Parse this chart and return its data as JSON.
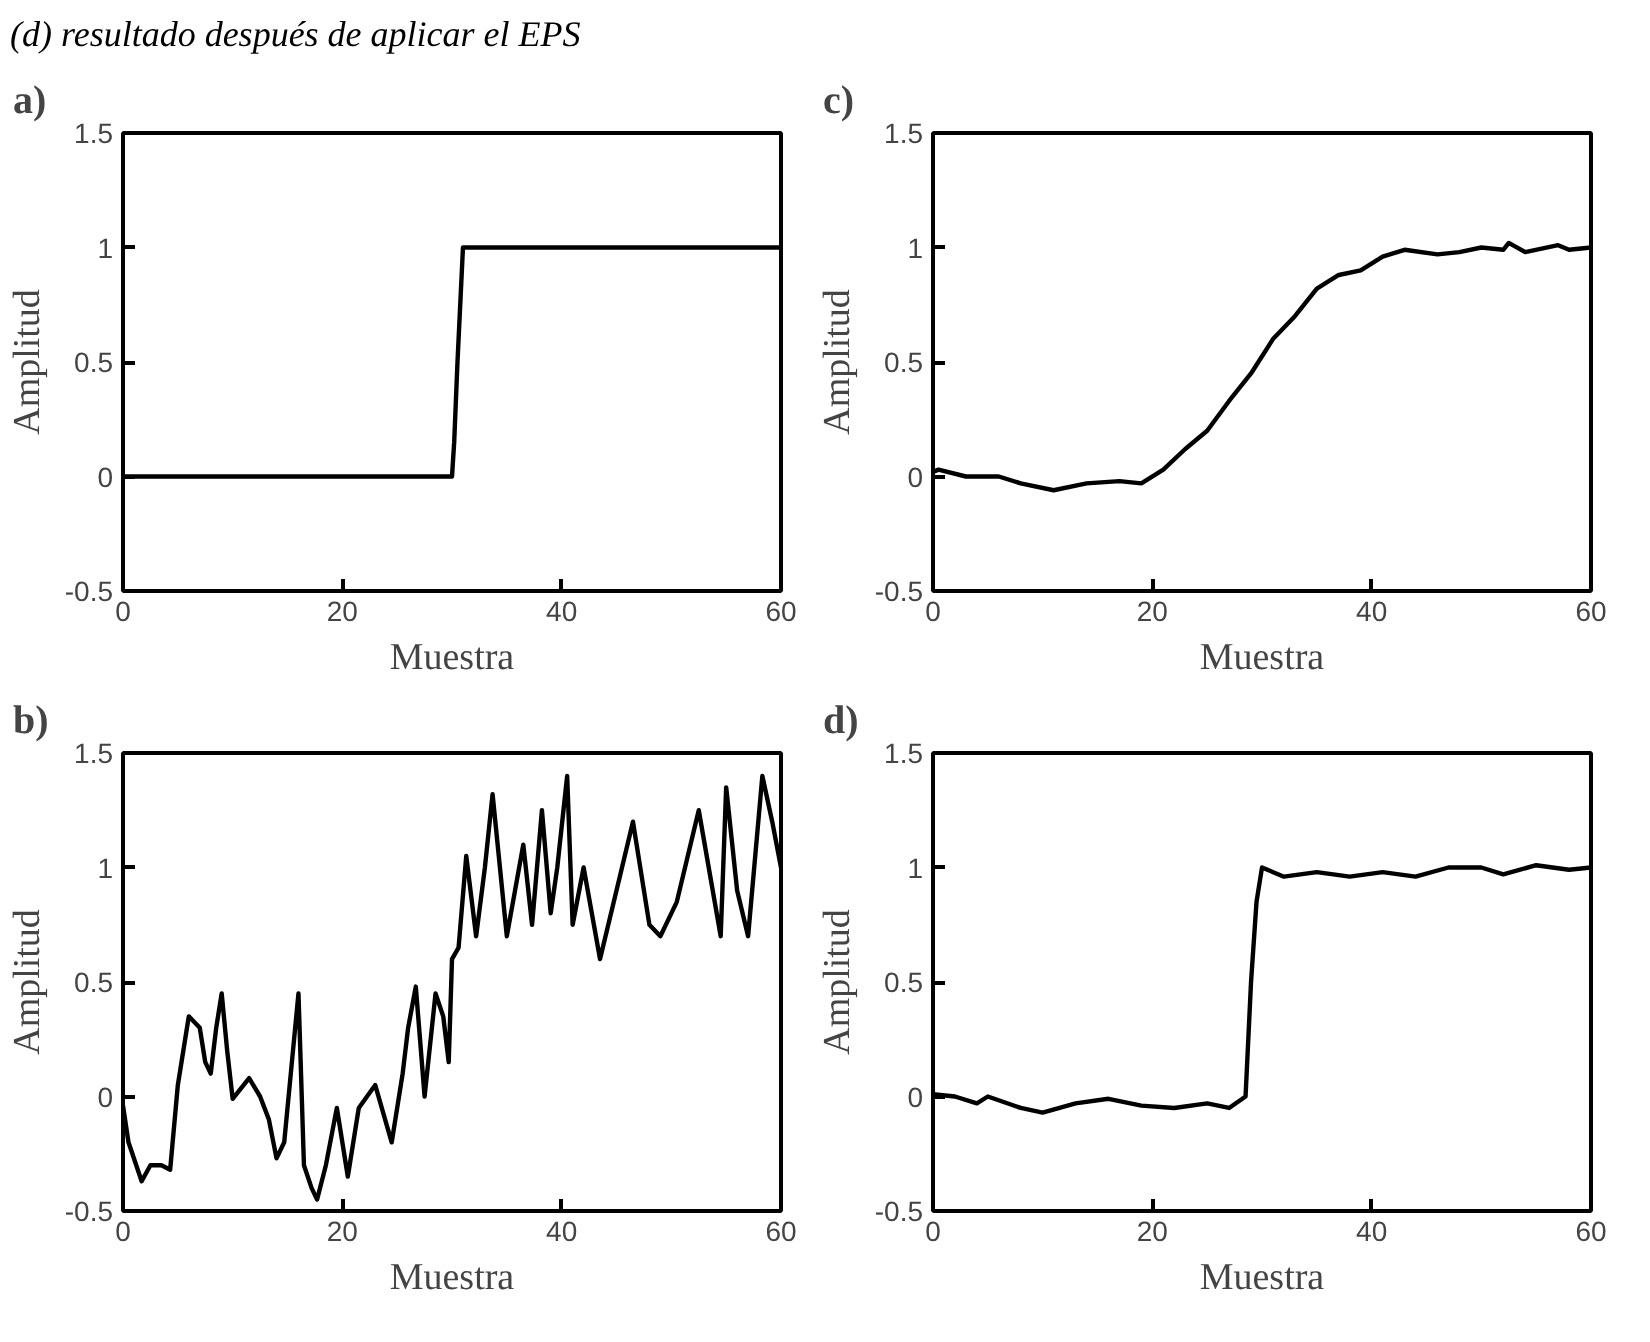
{
  "chart_data": [
    {
      "type": "line",
      "title": "a)",
      "xlabel": "Muestra",
      "ylabel": "Amplitud",
      "annotations": [
        "(d) resultado después de aplicar el EPS"
      ],
      "xlim": [
        0,
        60
      ],
      "ylim": [
        -0.5,
        1.5
      ],
      "xticks": [
        0,
        20,
        40,
        60
      ],
      "yticks": [
        -0.5,
        0,
        0.5,
        1,
        1.5
      ],
      "grid": false,
      "series": [
        {
          "color": "#000000",
          "x": [
            0,
            30,
            30.2,
            30.5,
            30.8,
            31,
            60
          ],
          "values": [
            0,
            0,
            0.15,
            0.5,
            0.8,
            1,
            1
          ]
        }
      ]
    },
    {
      "type": "line",
      "title": "c)",
      "xlabel": "Muestra",
      "ylabel": "Amplitud",
      "xlim": [
        0,
        60
      ],
      "ylim": [
        -0.5,
        1.5
      ],
      "xticks": [
        0,
        20,
        40,
        60
      ],
      "yticks": [
        -0.5,
        0,
        0.5,
        1,
        1.5
      ],
      "grid": false,
      "series": [
        {
          "color": "#000000",
          "x": [
            0,
            0.5,
            3,
            6,
            8,
            11,
            14,
            17,
            19,
            21,
            23,
            25,
            27,
            29,
            31,
            33,
            35,
            37,
            39,
            41,
            43,
            46,
            48,
            50,
            52,
            52.5,
            54,
            57,
            58,
            60
          ],
          "values": [
            0.02,
            0.03,
            0,
            0,
            -0.03,
            -0.06,
            -0.03,
            -0.02,
            -0.03,
            0.03,
            0.12,
            0.2,
            0.33,
            0.45,
            0.6,
            0.7,
            0.82,
            0.88,
            0.9,
            0.96,
            0.99,
            0.97,
            0.98,
            1.0,
            0.99,
            1.02,
            0.98,
            1.01,
            0.99,
            1.0
          ]
        }
      ]
    },
    {
      "type": "line",
      "title": "b)",
      "xlabel": "Muestra",
      "ylabel": "Amplitud",
      "xlim": [
        0,
        60
      ],
      "ylim": [
        -0.5,
        1.5
      ],
      "xticks": [
        0,
        20,
        40,
        60
      ],
      "yticks": [
        -0.5,
        0,
        0.5,
        1,
        1.5
      ],
      "grid": false,
      "series": [
        {
          "color": "#000000",
          "x": [
            0,
            0.5,
            1.7,
            2.5,
            3.5,
            4.3,
            5,
            6,
            7,
            7.5,
            8,
            8.5,
            9,
            9.5,
            10,
            11.5,
            12.5,
            13.3,
            14,
            14.7,
            15.3,
            16,
            16.5,
            17.2,
            17.7,
            18.5,
            19.5,
            20.5,
            21.5,
            23,
            24.5,
            25.5,
            26,
            26.7,
            27.5,
            28.5,
            29.2,
            29.7,
            30,
            30.6,
            31.3,
            32.2,
            33,
            33.7,
            35,
            36.5,
            37.3,
            38.2,
            39,
            39.6,
            40.5,
            41,
            42,
            43.5,
            45,
            46.5,
            48,
            49,
            50.5,
            52.5,
            54.5,
            55,
            56,
            57,
            58.3,
            59.2,
            60
          ],
          "values": [
            -0.04,
            -0.2,
            -0.37,
            -0.3,
            -0.3,
            -0.32,
            0.05,
            0.35,
            0.3,
            0.15,
            0.1,
            0.3,
            0.45,
            0.2,
            -0.01,
            0.08,
            0.0,
            -0.1,
            -0.27,
            -0.2,
            0.1,
            0.45,
            -0.3,
            -0.4,
            -0.45,
            -0.3,
            -0.05,
            -0.35,
            -0.05,
            0.05,
            -0.2,
            0.1,
            0.3,
            0.48,
            0.0,
            0.45,
            0.35,
            0.15,
            0.6,
            0.65,
            1.05,
            0.7,
            1.0,
            1.32,
            0.7,
            1.1,
            0.75,
            1.25,
            0.8,
            1.0,
            1.4,
            0.75,
            1.0,
            0.6,
            0.9,
            1.2,
            0.75,
            0.7,
            0.85,
            1.25,
            0.7,
            1.35,
            0.9,
            0.7,
            1.4,
            1.2,
            1.0
          ]
        }
      ]
    },
    {
      "type": "line",
      "title": "d)",
      "xlabel": "Muestra",
      "ylabel": "Amplitud",
      "xlim": [
        0,
        60
      ],
      "ylim": [
        -0.5,
        1.5
      ],
      "xticks": [
        0,
        20,
        40,
        60
      ],
      "yticks": [
        -0.5,
        0,
        0.5,
        1,
        1.5
      ],
      "grid": false,
      "series": [
        {
          "color": "#000000",
          "x": [
            0,
            2,
            4,
            5,
            8,
            10,
            13,
            16,
            19,
            22,
            25,
            27,
            28.5,
            29,
            29.5,
            30,
            32,
            35,
            38,
            41,
            44,
            47,
            50,
            52,
            55,
            58,
            60
          ],
          "values": [
            0.01,
            0,
            -0.03,
            0,
            -0.05,
            -0.07,
            -0.03,
            -0.01,
            -0.04,
            -0.05,
            -0.03,
            -0.05,
            0.0,
            0.5,
            0.85,
            1.0,
            0.96,
            0.98,
            0.96,
            0.98,
            0.96,
            1.0,
            1.0,
            0.97,
            1.01,
            0.99,
            1.0
          ]
        }
      ]
    }
  ]
}
